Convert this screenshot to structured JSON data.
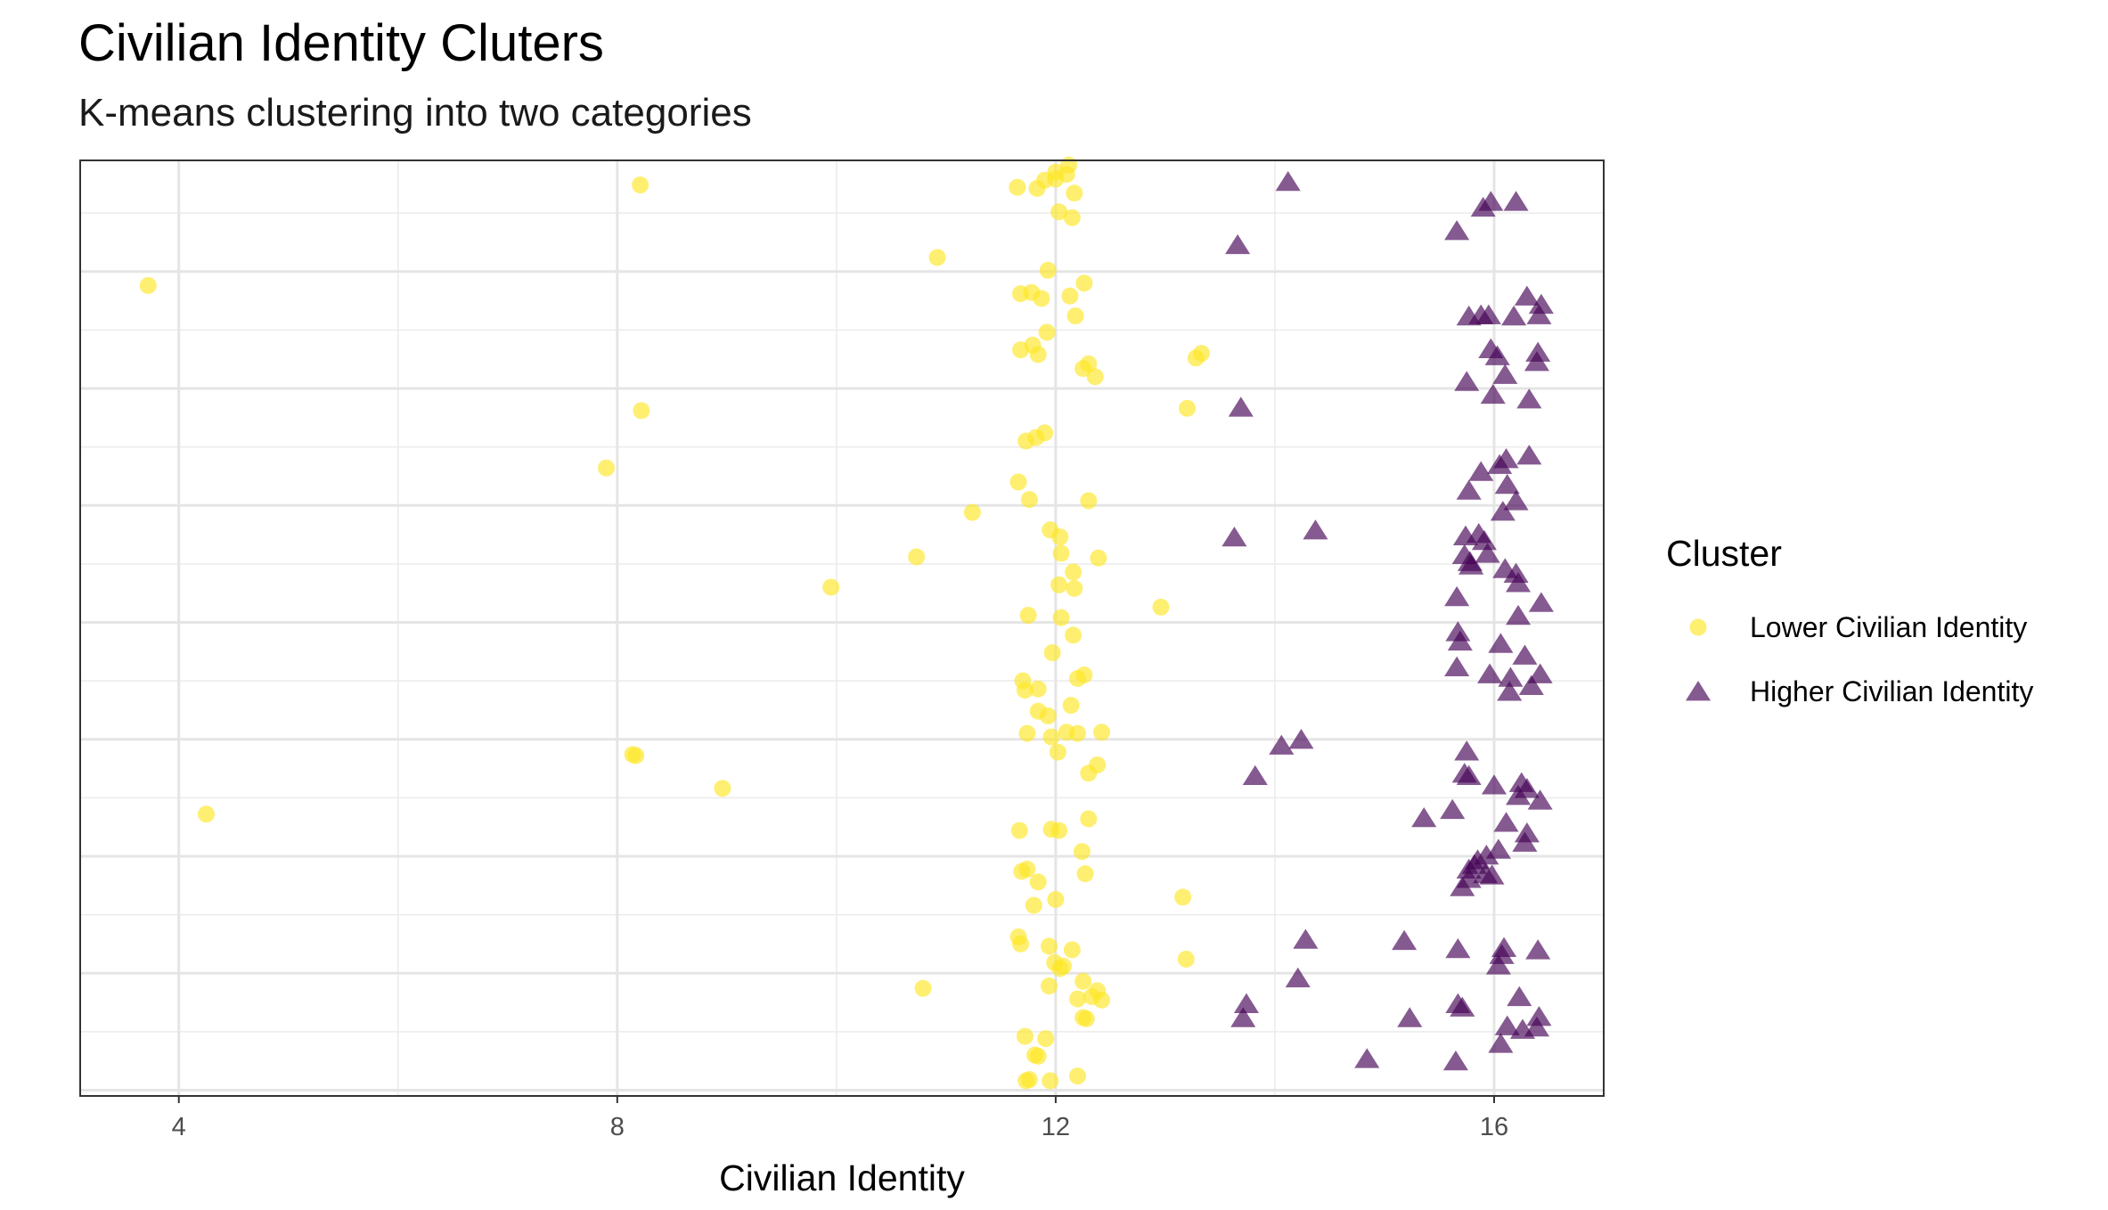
{
  "chart_data": {
    "type": "scatter",
    "title": "Civilian Identity Cluters",
    "subtitle": "K-means clustering into two categories",
    "xlabel": "Civilian Identity",
    "ylabel": "",
    "xlim": [
      3.1,
      17.0
    ],
    "ylim": [
      0.5,
      80.5
    ],
    "x_ticks": [
      4,
      8,
      12,
      16
    ],
    "x_tick_labels": [
      "4",
      "8",
      "12",
      "16"
    ],
    "y_tick_labels_shown": false,
    "grid": true,
    "legend": {
      "title": "Cluster",
      "position": "right",
      "entries": [
        {
          "label": "Lower Civilian Identity",
          "shape": "circle",
          "color": "#FDE725"
        },
        {
          "label": "Higher Civilian Identity",
          "shape": "triangle",
          "color": "#440154"
        }
      ]
    },
    "series": [
      {
        "name": "Lower Civilian Identity",
        "color": "#FDE725",
        "marker": "circle",
        "points": [
          [
            12.12,
            80.1
          ],
          [
            12.0,
            79.5
          ],
          [
            12.1,
            79.3
          ],
          [
            11.9,
            78.8
          ],
          [
            12.0,
            78.9
          ],
          [
            11.65,
            78.2
          ],
          [
            11.83,
            78.1
          ],
          [
            8.21,
            78.4
          ],
          [
            12.17,
            77.7
          ],
          [
            12.03,
            76.1
          ],
          [
            12.15,
            75.6
          ],
          [
            10.92,
            72.2
          ],
          [
            11.93,
            71.1
          ],
          [
            12.26,
            70.0
          ],
          [
            3.72,
            69.8
          ],
          [
            11.68,
            69.1
          ],
          [
            11.78,
            69.2
          ],
          [
            11.87,
            68.7
          ],
          [
            12.13,
            68.9
          ],
          [
            12.18,
            67.2
          ],
          [
            11.92,
            65.8
          ],
          [
            11.68,
            64.3
          ],
          [
            11.79,
            64.7
          ],
          [
            11.84,
            63.9
          ],
          [
            12.3,
            63.1
          ],
          [
            12.25,
            62.7
          ],
          [
            12.36,
            62.0
          ],
          [
            13.28,
            63.6
          ],
          [
            13.33,
            64.0
          ],
          [
            8.22,
            59.1
          ],
          [
            13.2,
            59.3
          ],
          [
            11.73,
            56.5
          ],
          [
            11.82,
            56.8
          ],
          [
            11.9,
            57.2
          ],
          [
            7.9,
            54.2
          ],
          [
            11.66,
            53.0
          ],
          [
            11.76,
            51.5
          ],
          [
            12.3,
            51.4
          ],
          [
            11.24,
            50.4
          ],
          [
            11.95,
            48.9
          ],
          [
            12.04,
            48.3
          ],
          [
            12.05,
            46.9
          ],
          [
            12.39,
            46.5
          ],
          [
            10.73,
            46.6
          ],
          [
            12.16,
            45.3
          ],
          [
            12.03,
            44.2
          ],
          [
            12.17,
            43.9
          ],
          [
            9.95,
            44.0
          ],
          [
            12.96,
            42.3
          ],
          [
            11.75,
            41.6
          ],
          [
            12.05,
            41.4
          ],
          [
            12.16,
            39.9
          ],
          [
            11.97,
            38.4
          ],
          [
            11.7,
            36.0
          ],
          [
            11.72,
            35.2
          ],
          [
            11.84,
            35.3
          ],
          [
            12.26,
            36.5
          ],
          [
            12.2,
            36.2
          ],
          [
            12.14,
            33.9
          ],
          [
            11.84,
            33.4
          ],
          [
            11.93,
            33.0
          ],
          [
            11.74,
            31.5
          ],
          [
            11.96,
            31.2
          ],
          [
            12.1,
            31.6
          ],
          [
            12.2,
            31.5
          ],
          [
            12.42,
            31.6
          ],
          [
            12.02,
            29.9
          ],
          [
            12.38,
            28.8
          ],
          [
            12.3,
            28.1
          ],
          [
            8.14,
            29.7
          ],
          [
            8.17,
            29.6
          ],
          [
            8.96,
            26.8
          ],
          [
            4.25,
            24.6
          ],
          [
            12.3,
            24.2
          ],
          [
            11.67,
            23.2
          ],
          [
            11.96,
            23.3
          ],
          [
            12.03,
            23.2
          ],
          [
            12.24,
            21.4
          ],
          [
            11.69,
            19.7
          ],
          [
            11.74,
            19.9
          ],
          [
            12.27,
            19.5
          ],
          [
            11.84,
            18.8
          ],
          [
            12.0,
            17.3
          ],
          [
            11.8,
            16.8
          ],
          [
            13.16,
            17.5
          ],
          [
            11.66,
            14.1
          ],
          [
            11.68,
            13.5
          ],
          [
            11.94,
            13.3
          ],
          [
            12.15,
            13.0
          ],
          [
            13.19,
            12.2
          ],
          [
            11.99,
            11.9
          ],
          [
            12.04,
            11.4
          ],
          [
            12.07,
            11.6
          ],
          [
            10.79,
            9.7
          ],
          [
            11.94,
            9.9
          ],
          [
            12.25,
            10.3
          ],
          [
            12.33,
            9.0
          ],
          [
            12.38,
            9.5
          ],
          [
            12.42,
            8.7
          ],
          [
            12.2,
            8.8
          ],
          [
            12.25,
            7.2
          ],
          [
            12.28,
            7.1
          ],
          [
            11.72,
            5.6
          ],
          [
            11.91,
            5.4
          ],
          [
            11.81,
            4.0
          ],
          [
            11.84,
            3.9
          ],
          [
            11.73,
            1.8
          ],
          [
            11.76,
            1.9
          ],
          [
            11.95,
            1.8
          ],
          [
            12.2,
            2.2
          ]
        ]
      },
      {
        "name": "Higher Civilian Identity",
        "color": "#440154",
        "marker": "triangle",
        "points": [
          [
            14.12,
            78.6
          ],
          [
            15.97,
            76.9
          ],
          [
            15.9,
            76.4
          ],
          [
            16.2,
            76.9
          ],
          [
            15.66,
            74.4
          ],
          [
            13.66,
            73.2
          ],
          [
            16.3,
            68.8
          ],
          [
            16.43,
            68.1
          ],
          [
            15.77,
            67.1
          ],
          [
            15.95,
            67.2
          ],
          [
            15.88,
            67.2
          ],
          [
            16.18,
            67.1
          ],
          [
            16.41,
            67.2
          ],
          [
            15.97,
            64.3
          ],
          [
            16.03,
            63.7
          ],
          [
            16.4,
            64.0
          ],
          [
            16.39,
            63.2
          ],
          [
            16.1,
            62.1
          ],
          [
            15.75,
            61.5
          ],
          [
            15.99,
            60.4
          ],
          [
            16.32,
            60.0
          ],
          [
            13.69,
            59.3
          ],
          [
            16.32,
            55.2
          ],
          [
            16.11,
            54.9
          ],
          [
            16.05,
            54.4
          ],
          [
            15.88,
            53.8
          ],
          [
            16.12,
            52.7
          ],
          [
            16.2,
            51.3
          ],
          [
            15.77,
            52.2
          ],
          [
            16.08,
            50.4
          ],
          [
            14.37,
            48.8
          ],
          [
            15.74,
            48.3
          ],
          [
            15.86,
            48.5
          ],
          [
            15.91,
            47.9
          ],
          [
            15.94,
            46.8
          ],
          [
            13.63,
            48.2
          ],
          [
            15.73,
            46.7
          ],
          [
            15.78,
            46.1
          ],
          [
            15.79,
            45.8
          ],
          [
            16.1,
            45.5
          ],
          [
            16.2,
            45.1
          ],
          [
            16.22,
            44.3
          ],
          [
            15.66,
            43.1
          ],
          [
            16.43,
            42.6
          ],
          [
            16.22,
            41.5
          ],
          [
            15.67,
            40.1
          ],
          [
            15.69,
            39.3
          ],
          [
            16.06,
            39.1
          ],
          [
            16.28,
            38.1
          ],
          [
            15.66,
            37.1
          ],
          [
            15.96,
            36.5
          ],
          [
            16.15,
            36.2
          ],
          [
            16.42,
            36.5
          ],
          [
            16.34,
            35.5
          ],
          [
            16.14,
            35.0
          ],
          [
            14.24,
            30.9
          ],
          [
            14.06,
            30.4
          ],
          [
            15.75,
            29.9
          ],
          [
            13.82,
            27.8
          ],
          [
            15.73,
            28.0
          ],
          [
            15.77,
            27.8
          ],
          [
            16.0,
            27.0
          ],
          [
            16.25,
            27.2
          ],
          [
            16.3,
            26.7
          ],
          [
            16.22,
            26.1
          ],
          [
            16.42,
            25.7
          ],
          [
            15.62,
            24.9
          ],
          [
            15.36,
            24.2
          ],
          [
            16.11,
            23.8
          ],
          [
            16.3,
            22.9
          ],
          [
            16.28,
            22.1
          ],
          [
            16.04,
            21.5
          ],
          [
            15.93,
            21.0
          ],
          [
            15.85,
            20.6
          ],
          [
            15.82,
            20.2
          ],
          [
            15.77,
            19.8
          ],
          [
            15.77,
            19.0
          ],
          [
            15.92,
            19.4
          ],
          [
            15.98,
            19.3
          ],
          [
            15.71,
            18.3
          ],
          [
            14.28,
            13.8
          ],
          [
            14.21,
            10.5
          ],
          [
            15.18,
            13.7
          ],
          [
            15.67,
            13.0
          ],
          [
            16.09,
            13.1
          ],
          [
            16.07,
            12.5
          ],
          [
            16.04,
            11.6
          ],
          [
            16.4,
            12.9
          ],
          [
            13.74,
            8.3
          ],
          [
            13.71,
            7.1
          ],
          [
            15.23,
            7.1
          ],
          [
            15.67,
            8.3
          ],
          [
            15.71,
            8.0
          ],
          [
            16.23,
            8.9
          ],
          [
            16.41,
            7.2
          ],
          [
            16.12,
            6.4
          ],
          [
            16.26,
            6.1
          ],
          [
            16.39,
            6.3
          ],
          [
            16.06,
            4.9
          ],
          [
            14.84,
            3.6
          ],
          [
            15.65,
            3.4
          ]
        ]
      }
    ]
  }
}
